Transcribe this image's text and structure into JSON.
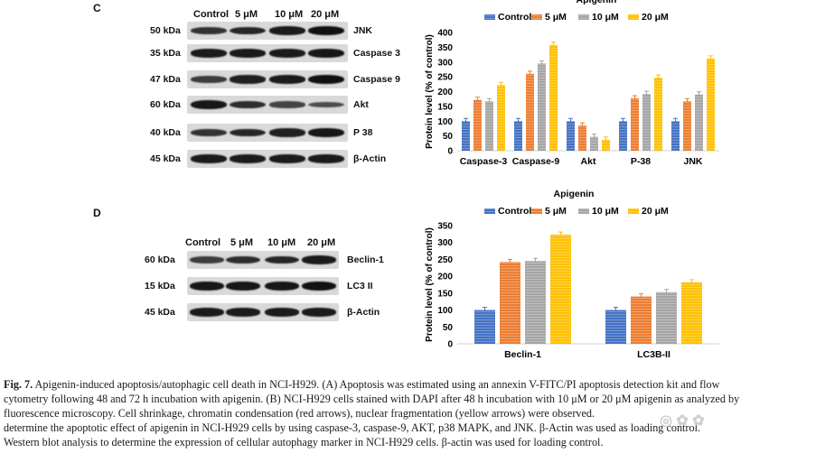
{
  "panel_c": {
    "letter": "C",
    "blot": {
      "columns": [
        "Control",
        "5 μM",
        "10 μM",
        "20 μM"
      ],
      "rows": [
        {
          "mw": "50 kDa",
          "name": "JNK",
          "intensity": [
            0.7,
            0.8,
            0.9,
            1.0
          ]
        },
        {
          "mw": "35 kDa",
          "name": "Caspase 3",
          "intensity": [
            0.9,
            0.9,
            0.9,
            0.95
          ]
        },
        {
          "mw": "47 kDa",
          "name": "Caspase 9",
          "intensity": [
            0.6,
            0.85,
            0.9,
            1.0
          ]
        },
        {
          "mw": "60 kDa",
          "name": "Akt",
          "intensity": [
            0.95,
            0.75,
            0.55,
            0.45
          ]
        },
        {
          "mw": "40 kDa",
          "name": "P 38",
          "intensity": [
            0.7,
            0.8,
            0.85,
            0.95
          ]
        },
        {
          "mw": "45 kDa",
          "name": "β-Actin",
          "intensity": [
            0.9,
            0.9,
            0.9,
            0.9
          ]
        }
      ]
    }
  },
  "panel_d": {
    "letter": "D",
    "blot": {
      "columns": [
        "Control",
        "5 μM",
        "10 μM",
        "20 μM"
      ],
      "rows": [
        {
          "mw": "60 kDa",
          "name": "Beclin-1",
          "intensity": [
            0.6,
            0.75,
            0.8,
            0.9
          ]
        },
        {
          "mw": "15 kDa",
          "name": "LC3 II",
          "intensity": [
            0.95,
            0.95,
            0.95,
            1.0
          ]
        },
        {
          "mw": "45 kDa",
          "name": "β-Actin",
          "intensity": [
            0.9,
            0.9,
            0.9,
            0.9
          ]
        }
      ]
    }
  },
  "chart_data": [
    {
      "type": "bar",
      "title": "Apigenin",
      "xlabel": "",
      "ylabel": "Protein level (% of control)",
      "ylim": [
        0,
        400
      ],
      "yticks": [
        0,
        50,
        100,
        150,
        200,
        250,
        300,
        350,
        400
      ],
      "categories": [
        "Caspase-3",
        "Caspase-9",
        "Akt",
        "P-38",
        "JNK"
      ],
      "legend_position": "top",
      "series": [
        {
          "name": "Control",
          "color": "#4472c4",
          "values": [
            100,
            100,
            100,
            100,
            100
          ]
        },
        {
          "name": "5 μM",
          "color": "#ed7d31",
          "values": [
            172,
            260,
            85,
            177,
            167
          ]
        },
        {
          "name": "10 μM",
          "color": "#a5a5a5",
          "values": [
            167,
            295,
            47,
            192,
            190
          ]
        },
        {
          "name": "20 μM",
          "color": "#ffc000",
          "values": [
            222,
            358,
            37,
            247,
            312
          ]
        }
      ]
    },
    {
      "type": "bar",
      "title": "Apigenin",
      "xlabel": "",
      "ylabel": "Protein level (% of control)",
      "ylim": [
        0,
        350
      ],
      "yticks": [
        0,
        50,
        100,
        150,
        200,
        250,
        300,
        350
      ],
      "categories": [
        "Beclin-1",
        "LC3B-II"
      ],
      "legend_position": "top",
      "series": [
        {
          "name": "Control",
          "color": "#4472c4",
          "values": [
            100,
            100
          ]
        },
        {
          "name": "5 μM",
          "color": "#ed7d31",
          "values": [
            242,
            140
          ]
        },
        {
          "name": "10 μM",
          "color": "#a5a5a5",
          "values": [
            245,
            153
          ]
        },
        {
          "name": "20 μM",
          "color": "#ffc000",
          "values": [
            323,
            182
          ]
        }
      ]
    }
  ],
  "caption": {
    "fig_label": "Fig. 7.",
    "line1": "Apigenin-induced apoptosis/autophagic cell death in NCI-H929. (A) Apoptosis was estimated using an annexin V-FITC/PI apoptosis detection kit and flow",
    "line2": "cytometry following 48 and 72 h incubation with apigenin. (B) NCI-H929 cells stained with DAPI after 48 h incubation with 10 μM or 20 μM apigenin as analyzed by",
    "line3": "fluorescence microscopy. Cell shrinkage, chromatin condensation (red arrows), nuclear fragmentation (yellow arrows) were observed.",
    "line4": "determine the apoptotic effect of apigenin in NCI-H929 cells by using caspase-3, caspase-9, AKT, p38 MAPK, and JNK. β-Actin was used as loading control.",
    "line5": "Western blot analysis to determine the expression of cellular autophagy marker in NCI-H929 cells. β-actin was used for loading control."
  }
}
